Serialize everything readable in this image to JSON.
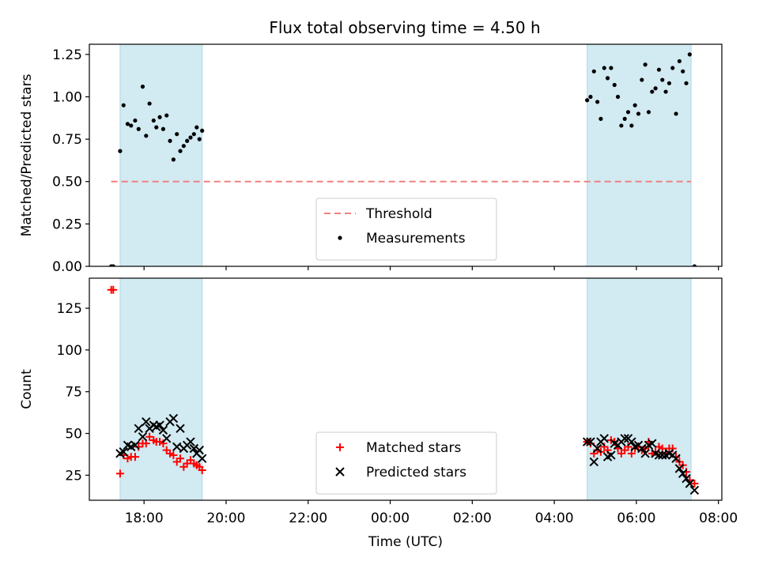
{
  "title": "Flux total observing time = 4.50 h",
  "chart_data": [
    {
      "type": "scatter",
      "ylabel": "Matched/Predicted stars",
      "xlabel": "",
      "xlim": [
        "16:40",
        "08:05"
      ],
      "ylim": [
        0,
        1.31
      ],
      "yticks": [
        "0.00",
        "0.25",
        "0.50",
        "0.75",
        "1.00",
        "1.25"
      ],
      "xticks": [
        "18:00",
        "20:00",
        "22:00",
        "00:00",
        "02:00",
        "04:00",
        "06:00",
        "08:00"
      ],
      "show_xtick_labels": false,
      "shaded_intervals": [
        [
          "17:25",
          "19:25"
        ],
        [
          "04:48",
          "07:20"
        ]
      ],
      "shade_color": "#add8e6",
      "threshold": {
        "name": "Threshold",
        "value": 0.5,
        "x_start": "17:12",
        "x_end": "07:20",
        "color": "#f08080",
        "style": "dashed"
      },
      "legend": {
        "position": "lower-center",
        "entries": [
          "Threshold",
          "Measurements"
        ]
      },
      "series": [
        {
          "name": "Measurements",
          "color": "#000000",
          "marker": "dot",
          "points": [
            [
              "17:12",
              0
            ],
            [
              "17:15",
              0
            ],
            [
              "17:25",
              0.68
            ],
            [
              "17:30",
              0.95
            ],
            [
              "17:36",
              0.84
            ],
            [
              "17:41",
              0.83
            ],
            [
              "17:47",
              0.86
            ],
            [
              "17:52",
              0.81
            ],
            [
              "17:58",
              1.06
            ],
            [
              "18:03",
              0.77
            ],
            [
              "18:08",
              0.96
            ],
            [
              "18:14",
              0.86
            ],
            [
              "18:18",
              0.82
            ],
            [
              "18:23",
              0.88
            ],
            [
              "18:28",
              0.81
            ],
            [
              "18:33",
              0.89
            ],
            [
              "18:38",
              0.74
            ],
            [
              "18:43",
              0.63
            ],
            [
              "18:48",
              0.78
            ],
            [
              "18:53",
              0.68
            ],
            [
              "18:58",
              0.71
            ],
            [
              "19:03",
              0.74
            ],
            [
              "19:08",
              0.76
            ],
            [
              "19:13",
              0.78
            ],
            [
              "19:17",
              0.82
            ],
            [
              "19:21",
              0.75
            ],
            [
              "19:25",
              0.8
            ],
            [
              "04:48",
              0.98
            ],
            [
              "04:53",
              1.0
            ],
            [
              "04:58",
              1.15
            ],
            [
              "05:03",
              0.97
            ],
            [
              "05:08",
              0.87
            ],
            [
              "05:13",
              1.17
            ],
            [
              "05:18",
              1.11
            ],
            [
              "05:23",
              1.17
            ],
            [
              "05:28",
              1.07
            ],
            [
              "05:33",
              1.0
            ],
            [
              "05:38",
              0.83
            ],
            [
              "05:43",
              0.87
            ],
            [
              "05:48",
              0.91
            ],
            [
              "05:53",
              0.83
            ],
            [
              "05:58",
              0.95
            ],
            [
              "06:03",
              0.9
            ],
            [
              "06:08",
              1.1
            ],
            [
              "06:13",
              1.19
            ],
            [
              "06:18",
              0.91
            ],
            [
              "06:23",
              1.03
            ],
            [
              "06:28",
              1.05
            ],
            [
              "06:33",
              1.16
            ],
            [
              "06:38",
              1.1
            ],
            [
              "06:43",
              1.03
            ],
            [
              "06:48",
              1.08
            ],
            [
              "06:53",
              1.17
            ],
            [
              "06:58",
              0.9
            ],
            [
              "07:03",
              1.21
            ],
            [
              "07:08",
              1.15
            ],
            [
              "07:13",
              1.08
            ],
            [
              "07:18",
              1.25
            ],
            [
              "07:25",
              0
            ]
          ]
        }
      ]
    },
    {
      "type": "scatter",
      "ylabel": "Count",
      "xlabel": "Time (UTC)",
      "xlim": [
        "16:40",
        "08:05"
      ],
      "ylim": [
        10,
        143
      ],
      "yticks": [
        "25",
        "50",
        "75",
        "100",
        "125"
      ],
      "xticks": [
        "18:00",
        "20:00",
        "22:00",
        "00:00",
        "02:00",
        "04:00",
        "06:00",
        "08:00"
      ],
      "show_xtick_labels": true,
      "shaded_intervals": [
        [
          "17:25",
          "19:25"
        ],
        [
          "04:48",
          "07:20"
        ]
      ],
      "shade_color": "#add8e6",
      "legend": {
        "position": "lower-center",
        "entries": [
          "Matched stars",
          "Predicted stars"
        ]
      },
      "series": [
        {
          "name": "Matched stars",
          "color": "#ff0000",
          "marker": "plus",
          "points": [
            [
              "17:12",
              136
            ],
            [
              "17:15",
              136
            ],
            [
              "17:25",
              26
            ],
            [
              "17:30",
              37
            ],
            [
              "17:36",
              35
            ],
            [
              "17:41",
              36
            ],
            [
              "17:47",
              36
            ],
            [
              "17:52",
              42
            ],
            [
              "17:58",
              44
            ],
            [
              "18:03",
              44
            ],
            [
              "18:08",
              48
            ],
            [
              "18:14",
              46
            ],
            [
              "18:18",
              45
            ],
            [
              "18:23",
              45
            ],
            [
              "18:28",
              44
            ],
            [
              "18:33",
              40
            ],
            [
              "18:38",
              38
            ],
            [
              "18:43",
              37
            ],
            [
              "18:48",
              33
            ],
            [
              "18:53",
              35
            ],
            [
              "18:58",
              30
            ],
            [
              "19:03",
              32
            ],
            [
              "19:08",
              34
            ],
            [
              "19:13",
              32
            ],
            [
              "19:17",
              31
            ],
            [
              "19:21",
              30
            ],
            [
              "19:25",
              28
            ],
            [
              "04:48",
              45
            ],
            [
              "04:53",
              44
            ],
            [
              "04:58",
              38
            ],
            [
              "05:03",
              40
            ],
            [
              "05:08",
              39
            ],
            [
              "05:13",
              42
            ],
            [
              "05:18",
              40
            ],
            [
              "05:23",
              46
            ],
            [
              "05:28",
              45
            ],
            [
              "05:33",
              41
            ],
            [
              "05:38",
              38
            ],
            [
              "05:43",
              40
            ],
            [
              "05:48",
              42
            ],
            [
              "05:53",
              38
            ],
            [
              "05:58",
              41
            ],
            [
              "06:03",
              42
            ],
            [
              "06:08",
              40
            ],
            [
              "06:13",
              41
            ],
            [
              "06:18",
              45
            ],
            [
              "06:23",
              38
            ],
            [
              "06:28",
              39
            ],
            [
              "06:33",
              42
            ],
            [
              "06:38",
              41
            ],
            [
              "06:43",
              38
            ],
            [
              "06:48",
              41
            ],
            [
              "06:53",
              41
            ],
            [
              "06:58",
              36
            ],
            [
              "07:03",
              33
            ],
            [
              "07:08",
              31
            ],
            [
              "07:13",
              27
            ],
            [
              "07:18",
              22
            ],
            [
              "07:25",
              20
            ]
          ]
        },
        {
          "name": "Predicted stars",
          "color": "#000000",
          "marker": "x",
          "points": [
            [
              "17:25",
              38
            ],
            [
              "17:30",
              39
            ],
            [
              "17:36",
              43
            ],
            [
              "17:41",
              42
            ],
            [
              "17:47",
              43
            ],
            [
              "17:52",
              53
            ],
            [
              "17:58",
              48
            ],
            [
              "18:03",
              57
            ],
            [
              "18:08",
              53
            ],
            [
              "18:14",
              55
            ],
            [
              "18:18",
              54
            ],
            [
              "18:23",
              55
            ],
            [
              "18:28",
              52
            ],
            [
              "18:33",
              47
            ],
            [
              "18:38",
              57
            ],
            [
              "18:43",
              59
            ],
            [
              "18:48",
              42
            ],
            [
              "18:53",
              53
            ],
            [
              "18:58",
              41
            ],
            [
              "19:03",
              43
            ],
            [
              "19:08",
              45
            ],
            [
              "19:13",
              41
            ],
            [
              "19:17",
              38
            ],
            [
              "19:21",
              40
            ],
            [
              "19:25",
              35
            ],
            [
              "04:48",
              45
            ],
            [
              "04:53",
              45
            ],
            [
              "04:58",
              33
            ],
            [
              "05:03",
              41
            ],
            [
              "05:08",
              45
            ],
            [
              "05:13",
              47
            ],
            [
              "05:18",
              36
            ],
            [
              "05:23",
              37
            ],
            [
              "05:28",
              44
            ],
            [
              "05:33",
              43
            ],
            [
              "05:38",
              45
            ],
            [
              "05:43",
              47
            ],
            [
              "05:48",
              47
            ],
            [
              "05:53",
              45
            ],
            [
              "05:58",
              42
            ],
            [
              "06:03",
              43
            ],
            [
              "06:08",
              41
            ],
            [
              "06:13",
              38
            ],
            [
              "06:18",
              43
            ],
            [
              "06:23",
              44
            ],
            [
              "06:28",
              38
            ],
            [
              "06:33",
              37
            ],
            [
              "06:38",
              37
            ],
            [
              "06:43",
              37
            ],
            [
              "06:48",
              38
            ],
            [
              "06:53",
              37
            ],
            [
              "06:58",
              35
            ],
            [
              "07:03",
              29
            ],
            [
              "07:08",
              26
            ],
            [
              "07:13",
              23
            ],
            [
              "07:18",
              20
            ],
            [
              "07:25",
              16
            ]
          ]
        }
      ]
    }
  ]
}
